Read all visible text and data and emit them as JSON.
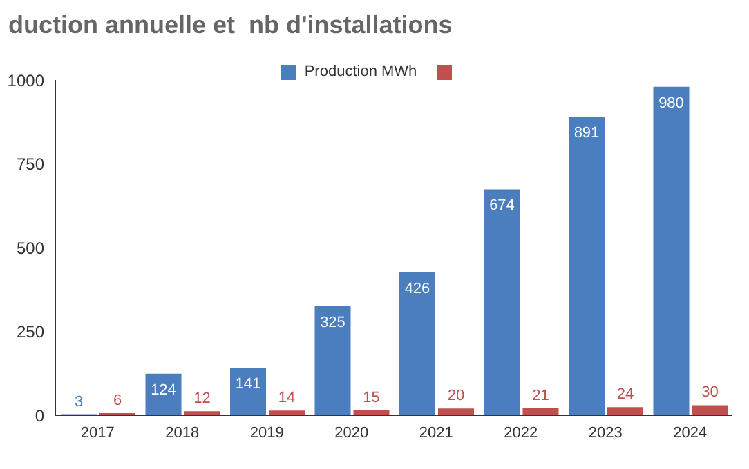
{
  "chart_data": {
    "type": "bar",
    "title": "duction annuelle et  nb d'installations",
    "categories": [
      "2017",
      "2018",
      "2019",
      "2020",
      "2021",
      "2022",
      "2023",
      "2024"
    ],
    "series": [
      {
        "name": "Production MWh",
        "color": "#4a7ebf",
        "values": [
          3,
          124,
          141,
          325,
          426,
          674,
          891,
          980
        ]
      },
      {
        "color": "#c0504d",
        "values": [
          6,
          12,
          14,
          15,
          20,
          21,
          24,
          30
        ]
      }
    ],
    "ylim": [
      0,
      1000
    ],
    "yticks": [
      0,
      250,
      500,
      750,
      1000
    ],
    "grid": false,
    "legend": "top",
    "data_labels": true
  }
}
